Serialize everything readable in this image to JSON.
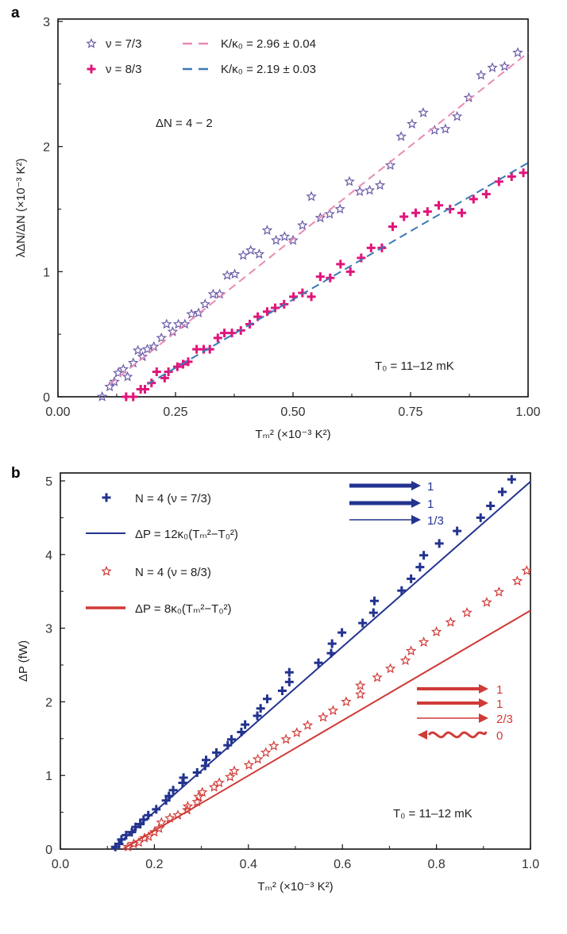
{
  "chart_data": [
    {
      "panel": "a",
      "type": "scatter",
      "xlabel": "Tₘ² (×10⁻³ K²)",
      "ylabel": "λΔN/ΔN (×10⁻³ K²)",
      "xlim": [
        0,
        1
      ],
      "ylim": [
        0,
        3
      ],
      "xticks": [
        "0.00",
        "0.25",
        "0.50",
        "0.75",
        "1.00"
      ],
      "xtick_values": [
        0,
        0.25,
        0.5,
        0.75,
        1
      ],
      "yticks": [
        "0",
        "1",
        "2",
        "3"
      ],
      "ytick_values": [
        0,
        1,
        2,
        3
      ],
      "annotations": [
        "ΔN = 4 − 2",
        "T₀ = 11–12 mK"
      ],
      "legend_position": "top-left",
      "series": [
        {
          "name": "ν = 7/3",
          "marker": "star",
          "color": "#6a5aa8",
          "x": [
            0.094,
            0.11,
            0.12,
            0.128,
            0.139,
            0.148,
            0.16,
            0.17,
            0.18,
            0.19,
            0.204,
            0.22,
            0.231,
            0.244,
            0.256,
            0.27,
            0.284,
            0.299,
            0.313,
            0.33,
            0.344,
            0.36,
            0.376,
            0.394,
            0.41,
            0.428,
            0.445,
            0.464,
            0.482,
            0.5,
            0.52,
            0.539,
            0.558,
            0.578,
            0.6,
            0.62,
            0.642,
            0.663,
            0.685,
            0.707,
            0.73,
            0.753,
            0.777,
            0.801,
            0.824,
            0.849,
            0.874,
            0.9,
            0.924,
            0.95,
            0.978
          ],
          "y": [
            0,
            0.08,
            0.12,
            0.19,
            0.22,
            0.16,
            0.27,
            0.37,
            0.32,
            0.38,
            0.4,
            0.47,
            0.58,
            0.52,
            0.58,
            0.58,
            0.66,
            0.67,
            0.74,
            0.82,
            0.82,
            0.97,
            0.98,
            1.13,
            1.17,
            1.14,
            1.33,
            1.25,
            1.28,
            1.25,
            1.37,
            1.6,
            1.43,
            1.46,
            1.5,
            1.72,
            1.64,
            1.65,
            1.69,
            1.85,
            2.08,
            2.18,
            2.27,
            2.13,
            2.14,
            2.24,
            2.39,
            2.57,
            2.63,
            2.64,
            2.75
          ]
        },
        {
          "name": "ν = 8/3",
          "marker": "cross",
          "color": "#e0157a",
          "x": [
            0.145,
            0.16,
            0.176,
            0.185,
            0.199,
            0.21,
            0.227,
            0.235,
            0.254,
            0.266,
            0.277,
            0.295,
            0.31,
            0.323,
            0.34,
            0.354,
            0.37,
            0.389,
            0.408,
            0.425,
            0.445,
            0.462,
            0.481,
            0.501,
            0.52,
            0.539,
            0.558,
            0.579,
            0.601,
            0.622,
            0.645,
            0.666,
            0.689,
            0.712,
            0.736,
            0.761,
            0.786,
            0.81,
            0.834,
            0.859,
            0.884,
            0.911,
            0.938,
            0.965,
            0.99
          ],
          "y": [
            0,
            0,
            0.06,
            0.06,
            0.11,
            0.2,
            0.15,
            0.2,
            0.24,
            0.26,
            0.28,
            0.38,
            0.38,
            0.38,
            0.47,
            0.51,
            0.51,
            0.53,
            0.58,
            0.64,
            0.68,
            0.71,
            0.74,
            0.8,
            0.83,
            0.8,
            0.96,
            0.95,
            1.06,
            1.0,
            1.11,
            1.19,
            1.19,
            1.36,
            1.44,
            1.47,
            1.48,
            1.53,
            1.5,
            1.47,
            1.58,
            1.62,
            1.72,
            1.76,
            1.79
          ]
        },
        {
          "name": "K/κ₀ = 2.96 ± 0.04",
          "type": "line",
          "dash": true,
          "color": "#e88bb5",
          "x": [
            0.11,
            1.0
          ],
          "y": [
            0.1,
            2.75
          ]
        },
        {
          "name": "K/κ₀ = 2.19 ± 0.03",
          "type": "line",
          "dash": true,
          "color": "#3a7ab8",
          "x": [
            0.19,
            1.0
          ],
          "y": [
            0.1,
            1.87
          ]
        }
      ]
    },
    {
      "panel": "b",
      "type": "scatter",
      "xlabel": "Tₘ² (×10⁻³ K²)",
      "ylabel": "ΔP (fW)",
      "xlim": [
        0,
        1
      ],
      "ylim": [
        0,
        5
      ],
      "xticks": [
        "0.0",
        "0.2",
        "0.4",
        "0.6",
        "0.8",
        "1.0"
      ],
      "xtick_values": [
        0,
        0.2,
        0.4,
        0.6,
        0.8,
        1
      ],
      "yticks": [
        "0",
        "1",
        "2",
        "3",
        "4",
        "5"
      ],
      "ytick_values": [
        0,
        1,
        2,
        3,
        4,
        5
      ],
      "annotations": [
        "T₀ = 11–12 mK"
      ],
      "legend_position": "top-left",
      "mode_arrows": {
        "blue": [
          "1",
          "1",
          "1/3"
        ],
        "red": [
          "1",
          "1",
          "2/3",
          "0"
        ]
      },
      "series": [
        {
          "name": "N = 4 (ν = 7/3)",
          "marker": "cross",
          "color": "#23338f",
          "x": [
            0.117,
            0.125,
            0.13,
            0.14,
            0.152,
            0.16,
            0.17,
            0.177,
            0.187,
            0.204,
            0.225,
            0.231,
            0.24,
            0.26,
            0.262,
            0.291,
            0.308,
            0.31,
            0.332,
            0.356,
            0.364,
            0.385,
            0.393,
            0.419,
            0.426,
            0.44,
            0.472,
            0.487,
            0.487,
            0.549,
            0.576,
            0.578,
            0.599,
            0.643,
            0.666,
            0.668,
            0.726,
            0.746,
            0.765,
            0.773,
            0.806,
            0.844,
            0.894,
            0.915,
            0.94,
            0.96
          ],
          "y": [
            0.03,
            0.07,
            0.13,
            0.19,
            0.23,
            0.3,
            0.34,
            0.4,
            0.46,
            0.54,
            0.66,
            0.72,
            0.8,
            0.9,
            0.97,
            1.04,
            1.13,
            1.21,
            1.31,
            1.41,
            1.49,
            1.59,
            1.69,
            1.81,
            1.91,
            2.04,
            2.15,
            2.27,
            2.4,
            2.53,
            2.66,
            2.79,
            2.94,
            3.07,
            3.21,
            3.37,
            3.51,
            3.67,
            3.83,
            3.99,
            4.15,
            4.32,
            4.5,
            4.66,
            4.85,
            5.02
          ]
        },
        {
          "name": "ΔP = 12κ₀(Tₘ²−T₀²)",
          "type": "line",
          "color": "#23338f",
          "x": [
            0.11,
            1.0
          ],
          "y": [
            0,
            4.99
          ]
        },
        {
          "name": "N = 4 (ν = 8/3)",
          "marker": "star",
          "color": "#d03a37",
          "x": [
            0.144,
            0.156,
            0.167,
            0.179,
            0.188,
            0.2,
            0.21,
            0.215,
            0.233,
            0.25,
            0.27,
            0.271,
            0.291,
            0.294,
            0.302,
            0.327,
            0.338,
            0.361,
            0.37,
            0.401,
            0.42,
            0.437,
            0.454,
            0.48,
            0.503,
            0.526,
            0.559,
            0.58,
            0.608,
            0.638,
            0.638,
            0.674,
            0.702,
            0.734,
            0.746,
            0.773,
            0.8,
            0.83,
            0.865,
            0.907,
            0.933,
            0.972,
            0.992
          ],
          "y": [
            0.03,
            0.07,
            0.09,
            0.15,
            0.17,
            0.23,
            0.28,
            0.36,
            0.42,
            0.46,
            0.53,
            0.58,
            0.64,
            0.71,
            0.77,
            0.84,
            0.9,
            0.98,
            1.06,
            1.14,
            1.22,
            1.31,
            1.4,
            1.49,
            1.58,
            1.68,
            1.79,
            1.88,
            2.0,
            2.1,
            2.22,
            2.33,
            2.45,
            2.56,
            2.69,
            2.81,
            2.95,
            3.08,
            3.21,
            3.35,
            3.49,
            3.64,
            3.78
          ]
        },
        {
          "name": "ΔP = 8κ₀(Tₘ²−T₀²)",
          "type": "line",
          "color": "#d03a37",
          "x": [
            0.133,
            1.0
          ],
          "y": [
            0,
            3.24
          ]
        }
      ]
    }
  ],
  "panel_labels": [
    "a",
    "b"
  ]
}
